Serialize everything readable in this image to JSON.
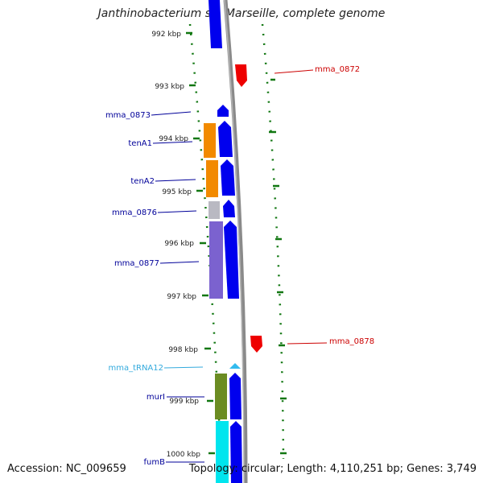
{
  "title": "Janthinobacterium sp. Marseille, complete genome",
  "footer": {
    "accession": "Accession: NC_009659",
    "topology": "Topology: circular; Length: 4,110,251 bp; Genes: 3,749"
  },
  "colors": {
    "forward_cds": "#0000ee",
    "reverse_cds": "#ee0000",
    "orange_feature": "#f28a00",
    "grey_feature": "#b9b9c2",
    "purple_feature": "#7b62cf",
    "olive_feature": "#6b8c22",
    "cyan_feature": "#00e5ee",
    "trna": "#33bbee",
    "backbone": "#8a8a8a",
    "ticks": "#117711",
    "label_blue": "#000099",
    "label_red": "#cc0000",
    "label_trna": "#33aadd"
  },
  "scale": [
    {
      "label": "992 kbp"
    },
    {
      "label": "993 kbp"
    },
    {
      "label": "994 kbp"
    },
    {
      "label": "995 kbp"
    },
    {
      "label": "996 kbp"
    },
    {
      "label": "997 kbp"
    },
    {
      "label": "998 kbp"
    },
    {
      "label": "999 kbp"
    },
    {
      "label": "1000 kbp"
    }
  ],
  "labels": {
    "mma_0872": "mma_0872",
    "mma_0873": "mma_0873",
    "tenA1": "tenA1",
    "tenA2": "tenA2",
    "mma_0876": "mma_0876",
    "mma_0877": "mma_0877",
    "mma_0878": "mma_0878",
    "mma_tRNA12": "mma_tRNA12",
    "murI": "murI",
    "fumB": "fumB"
  }
}
